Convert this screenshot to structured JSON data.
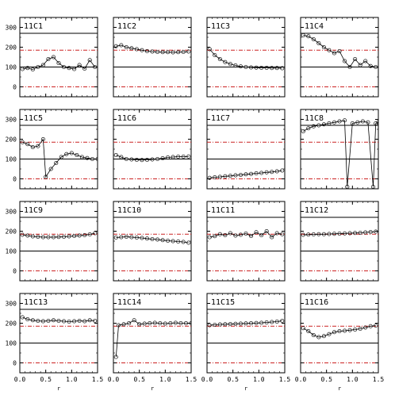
{
  "chart_data": [
    {
      "type": "line",
      "panel_label": "11C1",
      "x": [
        0.05,
        0.15,
        0.25,
        0.35,
        0.45,
        0.55,
        0.65,
        0.75,
        0.85,
        0.95,
        1.05,
        1.15,
        1.25,
        1.35,
        1.45
      ],
      "y": [
        90,
        95,
        88,
        100,
        110,
        140,
        150,
        120,
        100,
        95,
        90,
        110,
        92,
        135,
        100
      ]
    },
    {
      "type": "line",
      "panel_label": "11C2",
      "x": [
        0.05,
        0.15,
        0.25,
        0.35,
        0.45,
        0.55,
        0.65,
        0.75,
        0.85,
        0.95,
        1.05,
        1.15,
        1.25,
        1.35,
        1.45
      ],
      "y": [
        205,
        210,
        200,
        195,
        190,
        185,
        180,
        178,
        176,
        175,
        175,
        174,
        175,
        176,
        178
      ]
    },
    {
      "type": "line",
      "panel_label": "11C3",
      "x": [
        0.05,
        0.15,
        0.25,
        0.35,
        0.45,
        0.55,
        0.65,
        0.75,
        0.85,
        0.95,
        1.05,
        1.15,
        1.25,
        1.35,
        1.45
      ],
      "y": [
        190,
        160,
        140,
        125,
        115,
        108,
        103,
        100,
        98,
        97,
        96,
        96,
        95,
        95,
        94
      ]
    },
    {
      "type": "line",
      "panel_label": "11C4",
      "x": [
        0.05,
        0.15,
        0.25,
        0.35,
        0.45,
        0.55,
        0.65,
        0.75,
        0.85,
        0.95,
        1.05,
        1.15,
        1.25,
        1.35,
        1.45
      ],
      "y": [
        260,
        255,
        240,
        220,
        200,
        185,
        170,
        180,
        130,
        100,
        140,
        110,
        130,
        105,
        100
      ]
    },
    {
      "type": "line",
      "panel_label": "11C5",
      "x": [
        0.05,
        0.15,
        0.25,
        0.35,
        0.45,
        0.5,
        0.6,
        0.7,
        0.8,
        0.9,
        1.0,
        1.1,
        1.2,
        1.3,
        1.4,
        1.5
      ],
      "y": [
        185,
        175,
        160,
        165,
        200,
        10,
        50,
        80,
        110,
        125,
        130,
        120,
        110,
        105,
        100,
        100
      ]
    },
    {
      "type": "line",
      "panel_label": "11C6",
      "x": [
        0.05,
        0.15,
        0.25,
        0.35,
        0.45,
        0.55,
        0.65,
        0.75,
        0.85,
        0.95,
        1.05,
        1.15,
        1.25,
        1.35,
        1.45
      ],
      "y": [
        120,
        110,
        100,
        98,
        96,
        95,
        96,
        98,
        100,
        104,
        108,
        110,
        112,
        112,
        113
      ]
    },
    {
      "type": "line",
      "panel_label": "11C7",
      "x": [
        0.05,
        0.15,
        0.25,
        0.35,
        0.45,
        0.55,
        0.65,
        0.75,
        0.85,
        0.95,
        1.05,
        1.15,
        1.25,
        1.35,
        1.45
      ],
      "y": [
        5,
        8,
        10,
        13,
        15,
        18,
        20,
        23,
        25,
        28,
        30,
        33,
        35,
        38,
        42
      ]
    },
    {
      "type": "line",
      "panel_label": "11C8",
      "x": [
        0.05,
        0.15,
        0.25,
        0.35,
        0.45,
        0.55,
        0.65,
        0.75,
        0.85,
        0.9,
        1.0,
        1.1,
        1.2,
        1.3,
        1.4,
        1.45,
        1.5
      ],
      "y": [
        240,
        255,
        265,
        270,
        275,
        280,
        285,
        290,
        295,
        -40,
        280,
        285,
        290,
        285,
        -40,
        280,
        285
      ]
    },
    {
      "type": "line",
      "panel_label": "11C9",
      "x": [
        0.05,
        0.15,
        0.25,
        0.35,
        0.45,
        0.55,
        0.65,
        0.75,
        0.85,
        0.95,
        1.05,
        1.15,
        1.25,
        1.35,
        1.45
      ],
      "y": [
        182,
        178,
        174,
        172,
        170,
        170,
        170,
        171,
        172,
        174,
        176,
        178,
        180,
        184,
        190
      ]
    },
    {
      "type": "line",
      "panel_label": "11C10",
      "x": [
        0.05,
        0.15,
        0.25,
        0.35,
        0.45,
        0.55,
        0.65,
        0.75,
        0.85,
        0.95,
        1.05,
        1.15,
        1.25,
        1.35,
        1.45
      ],
      "y": [
        168,
        170,
        172,
        170,
        168,
        166,
        163,
        160,
        158,
        155,
        152,
        150,
        148,
        146,
        142
      ]
    },
    {
      "type": "line",
      "panel_label": "11C11",
      "x": [
        0.05,
        0.15,
        0.25,
        0.35,
        0.45,
        0.55,
        0.65,
        0.75,
        0.85,
        0.95,
        1.05,
        1.15,
        1.25,
        1.35,
        1.45
      ],
      "y": [
        170,
        175,
        185,
        180,
        190,
        178,
        182,
        188,
        176,
        195,
        180,
        200,
        170,
        190,
        185
      ]
    },
    {
      "type": "line",
      "panel_label": "11C12",
      "x": [
        0.05,
        0.15,
        0.25,
        0.35,
        0.45,
        0.55,
        0.65,
        0.75,
        0.85,
        0.95,
        1.05,
        1.15,
        1.25,
        1.35,
        1.45
      ],
      "y": [
        182,
        183,
        184,
        185,
        185,
        186,
        187,
        188,
        189,
        190,
        191,
        192,
        194,
        196,
        198
      ]
    },
    {
      "type": "line",
      "panel_label": "11C13",
      "x": [
        0.05,
        0.15,
        0.25,
        0.35,
        0.45,
        0.55,
        0.65,
        0.75,
        0.85,
        0.95,
        1.05,
        1.15,
        1.25,
        1.35,
        1.45
      ],
      "y": [
        230,
        220,
        215,
        212,
        210,
        212,
        215,
        212,
        210,
        208,
        210,
        212,
        210,
        215,
        212
      ]
    },
    {
      "type": "line",
      "panel_label": "11C14",
      "x": [
        0.05,
        0.1,
        0.2,
        0.3,
        0.4,
        0.5,
        0.6,
        0.7,
        0.8,
        0.9,
        1.0,
        1.1,
        1.2,
        1.3,
        1.4,
        1.5
      ],
      "y": [
        30,
        190,
        195,
        200,
        215,
        195,
        198,
        200,
        202,
        200,
        198,
        200,
        202,
        200,
        200,
        200
      ]
    },
    {
      "type": "line",
      "panel_label": "11C15",
      "x": [
        0.05,
        0.15,
        0.25,
        0.35,
        0.45,
        0.55,
        0.65,
        0.75,
        0.85,
        0.95,
        1.05,
        1.15,
        1.25,
        1.35,
        1.45
      ],
      "y": [
        190,
        192,
        194,
        195,
        196,
        197,
        198,
        199,
        200,
        201,
        202,
        204,
        206,
        208,
        212
      ]
    },
    {
      "type": "line",
      "panel_label": "11C16",
      "x": [
        0.05,
        0.15,
        0.25,
        0.35,
        0.45,
        0.55,
        0.65,
        0.75,
        0.85,
        0.95,
        1.05,
        1.15,
        1.25,
        1.35,
        1.45
      ],
      "y": [
        175,
        160,
        140,
        130,
        135,
        145,
        155,
        160,
        162,
        165,
        168,
        172,
        178,
        185,
        188
      ]
    }
  ],
  "axes": {
    "xlim": [
      0.0,
      1.5
    ],
    "ylim": [
      -50,
      350
    ],
    "x_ticks": [
      0.0,
      0.5,
      1.0,
      1.5
    ],
    "x_tick_labels": [
      "0.0",
      "0.5",
      "1.0",
      "1.5"
    ],
    "y_ticks": [
      0,
      100,
      200,
      300
    ],
    "y_tick_labels": [
      "0",
      "100",
      "200",
      "300"
    ],
    "xlabel": "r",
    "grid": false
  },
  "reference_lines": {
    "solid_black": [
      100,
      270
    ],
    "dashdot_red": [
      0,
      185
    ]
  },
  "colors": {
    "data_line": "#000000",
    "marker": "#000000",
    "reference_solid": "#000000",
    "reference_dashdot": "#cc2222"
  }
}
